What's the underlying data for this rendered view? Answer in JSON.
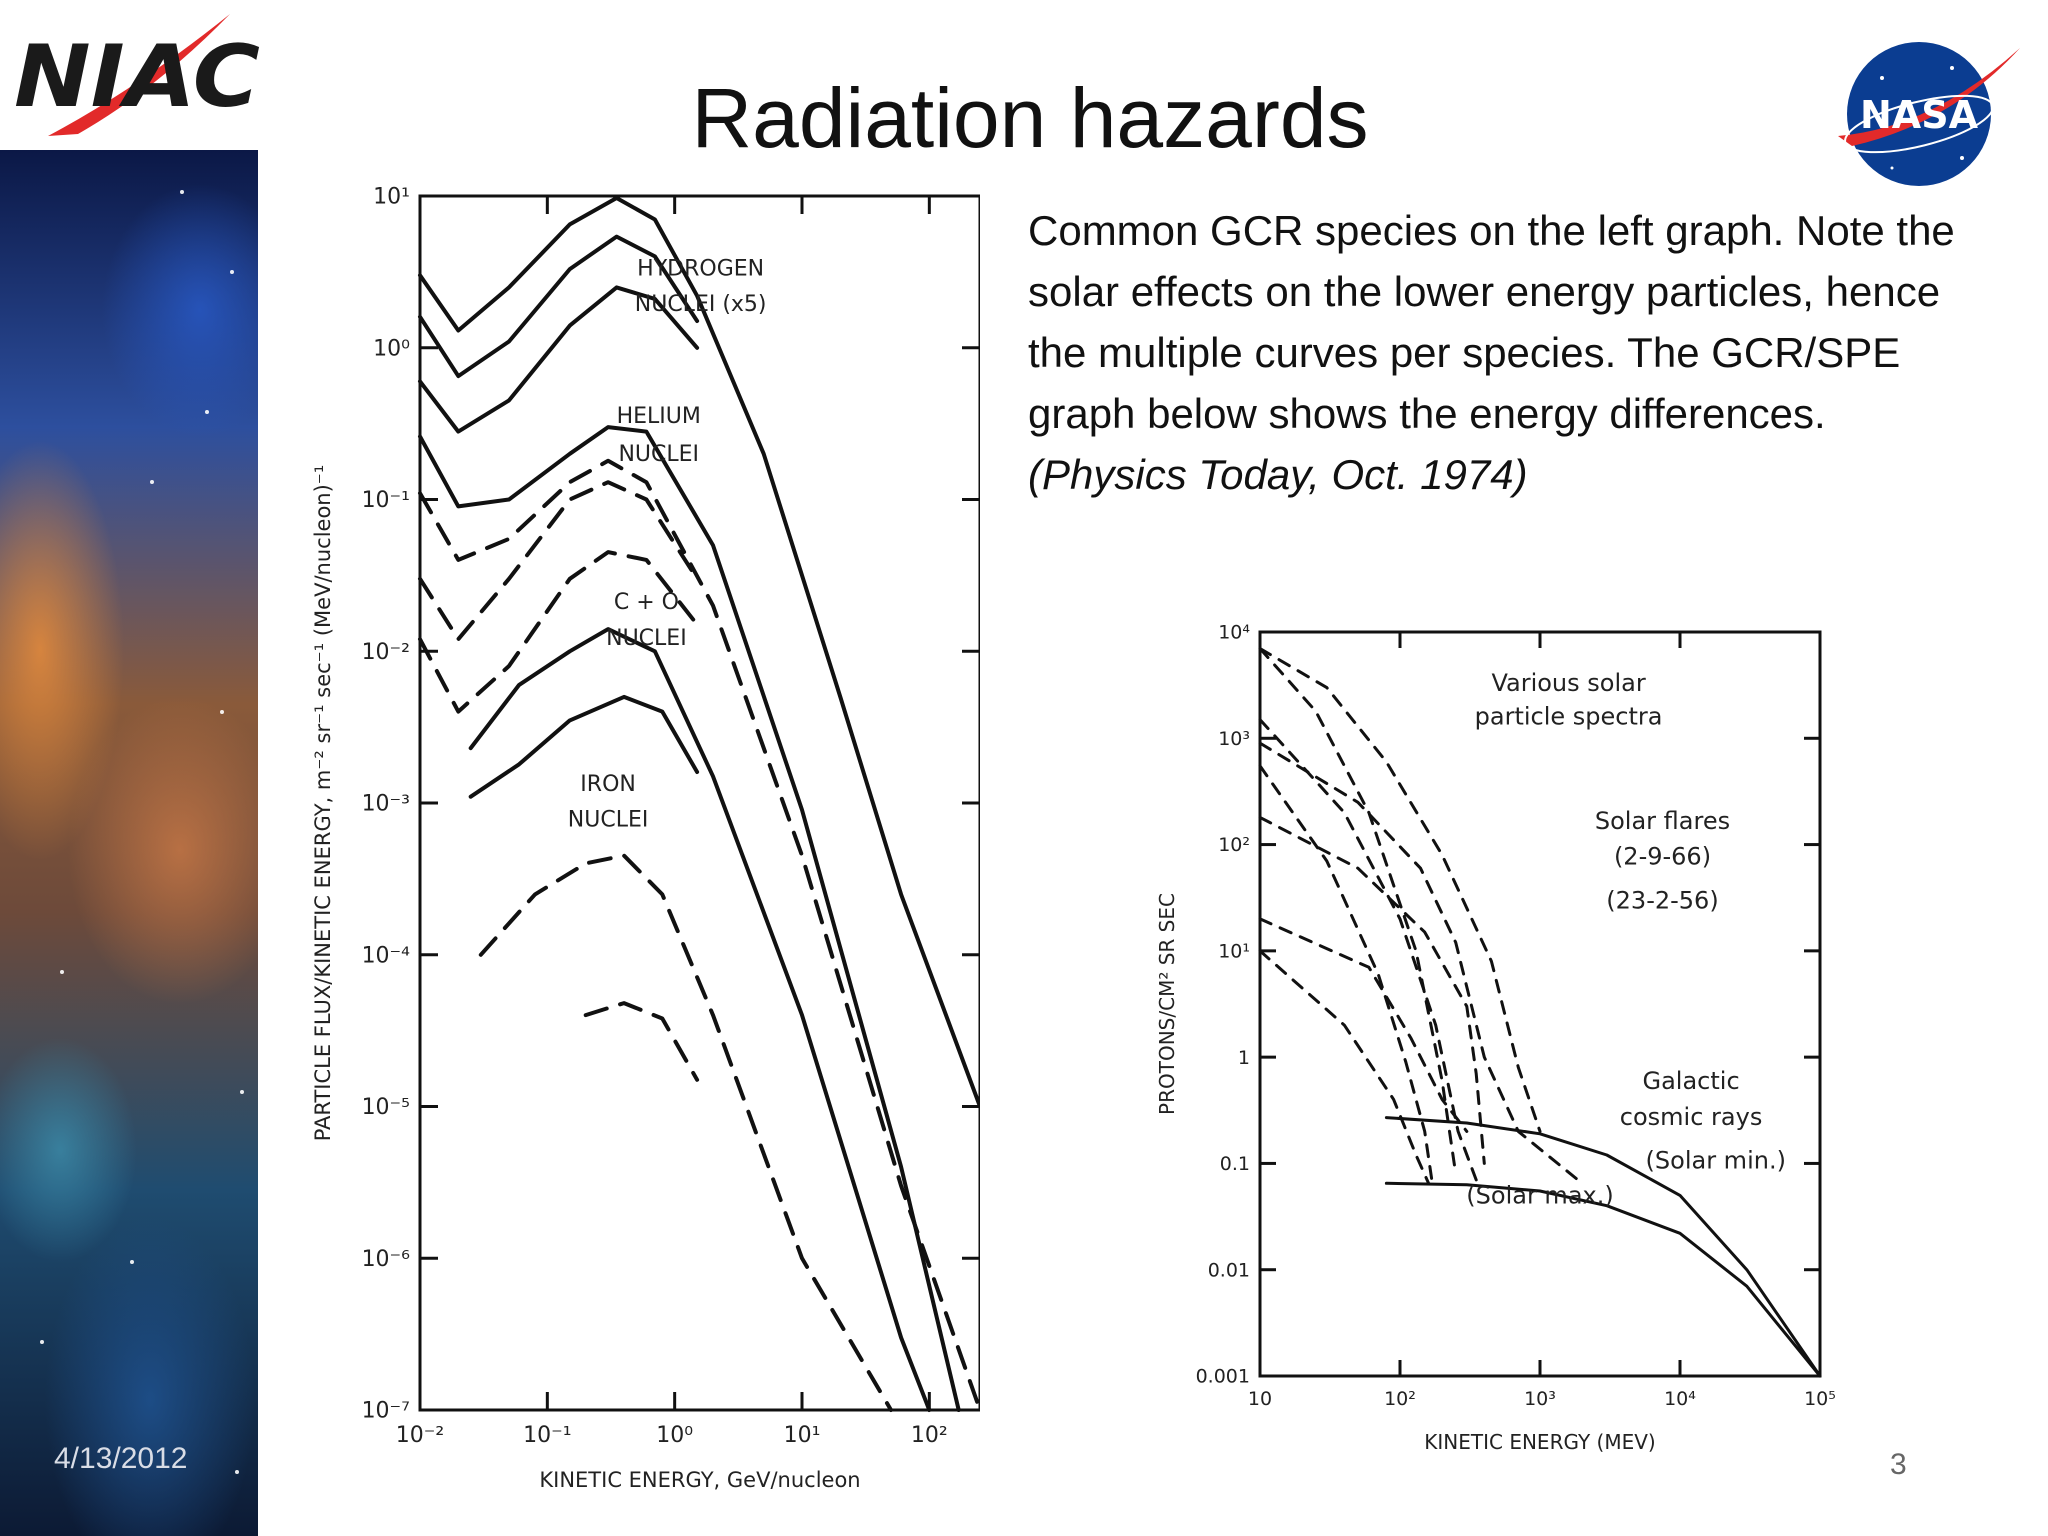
{
  "slide": {
    "title": "Radiation hazards",
    "description": "Common GCR species on the left graph. Note the solar effects on the lower energy particles, hence the multiple curves per species.  The GCR/SPE graph below shows the energy differences.",
    "citation": "(Physics Today, Oct. 1974)",
    "date": "4/13/2012",
    "page_number": "3",
    "logos": {
      "left": "NIAC",
      "right": "NASA"
    }
  },
  "chart_data": [
    {
      "type": "line",
      "xlabel": "KINETIC ENERGY, GeV/nucleon",
      "ylabel": "PARTICLE FLUX/KINETIC ENERGY,  m⁻² sr⁻¹ sec⁻¹ (MeV/nucleon)⁻¹",
      "x_scale": "log",
      "y_scale": "log",
      "xlim": [
        0.01,
        250
      ],
      "ylim": [
        1e-07,
        10
      ],
      "x_ticks": [
        0.01,
        0.1,
        1,
        10,
        100
      ],
      "x_tick_labels": [
        "10⁻²",
        "10⁻¹",
        "10⁰",
        "10¹",
        "10²"
      ],
      "y_ticks": [
        1e-07,
        1e-06,
        1e-05,
        0.0001,
        0.001,
        0.01,
        0.1,
        1,
        10
      ],
      "y_tick_labels": [
        "10⁻⁷",
        "10⁻⁶",
        "10⁻⁵",
        "10⁻⁴",
        "10⁻³",
        "10⁻²",
        "10⁻¹",
        "10⁰",
        "10¹"
      ],
      "annotations": [
        {
          "text": "HYDROGEN",
          "x": 1.6,
          "y": 3.0
        },
        {
          "text": "NUCLEI (x5)",
          "x": 1.6,
          "y": 1.75
        },
        {
          "text": "HELIUM",
          "x": 0.75,
          "y": 0.32
        },
        {
          "text": "NUCLEI",
          "x": 0.75,
          "y": 0.18
        },
        {
          "text": "C + O",
          "x": 0.6,
          "y": 0.019
        },
        {
          "text": "NUCLEI",
          "x": 0.6,
          "y": 0.011
        },
        {
          "text": "IRON",
          "x": 0.3,
          "y": 0.0012
        },
        {
          "text": "NUCLEI",
          "x": 0.3,
          "y": 0.0007
        }
      ],
      "series": [
        {
          "style": "solid",
          "points": [
            [
              0.01,
              3
            ],
            [
              0.02,
              1.3
            ],
            [
              0.05,
              2.5
            ],
            [
              0.15,
              6.5
            ],
            [
              0.35,
              9.7
            ],
            [
              0.7,
              7
            ],
            [
              1.5,
              2.2
            ],
            [
              5,
              0.2
            ],
            [
              20,
              0.005
            ],
            [
              60,
              0.00025
            ],
            [
              250,
              1e-05
            ]
          ]
        },
        {
          "style": "solid",
          "points": [
            [
              0.01,
              1.6
            ],
            [
              0.02,
              0.65
            ],
            [
              0.05,
              1.1
            ],
            [
              0.15,
              3.3
            ],
            [
              0.35,
              5.4
            ],
            [
              0.7,
              4
            ],
            [
              1.5,
              1.5
            ]
          ]
        },
        {
          "style": "solid",
          "points": [
            [
              0.01,
              0.6
            ],
            [
              0.02,
              0.28
            ],
            [
              0.05,
              0.45
            ],
            [
              0.15,
              1.4
            ],
            [
              0.35,
              2.5
            ],
            [
              0.7,
              2.1
            ],
            [
              1.5,
              1.0
            ]
          ]
        },
        {
          "style": "solid",
          "points": [
            [
              0.01,
              0.26
            ],
            [
              0.02,
              0.09
            ],
            [
              0.05,
              0.1
            ],
            [
              0.15,
              0.2
            ],
            [
              0.3,
              0.3
            ],
            [
              0.6,
              0.28
            ],
            [
              2,
              0.05
            ],
            [
              10,
              0.0009
            ],
            [
              60,
              4e-06
            ],
            [
              170,
              1e-07
            ]
          ]
        },
        {
          "style": "dashed",
          "points": [
            [
              0.01,
              0.11
            ],
            [
              0.02,
              0.04
            ],
            [
              0.05,
              0.055
            ],
            [
              0.15,
              0.13
            ],
            [
              0.3,
              0.18
            ],
            [
              0.6,
              0.13
            ],
            [
              2,
              0.02
            ],
            [
              10,
              0.00045
            ],
            [
              60,
              3e-06
            ],
            [
              250,
              1e-07
            ]
          ]
        },
        {
          "style": "dashed",
          "points": [
            [
              0.01,
              0.03
            ],
            [
              0.02,
              0.012
            ],
            [
              0.05,
              0.03
            ],
            [
              0.15,
              0.1
            ],
            [
              0.3,
              0.13
            ],
            [
              0.6,
              0.1
            ],
            [
              1.5,
              0.03
            ]
          ]
        },
        {
          "style": "dashed",
          "points": [
            [
              0.01,
              0.012
            ],
            [
              0.02,
              0.004
            ],
            [
              0.05,
              0.008
            ],
            [
              0.15,
              0.03
            ],
            [
              0.3,
              0.045
            ],
            [
              0.6,
              0.04
            ],
            [
              1.5,
              0.015
            ]
          ]
        },
        {
          "style": "solid",
          "points": [
            [
              0.025,
              0.0023
            ],
            [
              0.06,
              0.006
            ],
            [
              0.15,
              0.01
            ],
            [
              0.3,
              0.014
            ],
            [
              0.7,
              0.01
            ],
            [
              2,
              0.0015
            ],
            [
              10,
              4e-05
            ],
            [
              60,
              3e-07
            ],
            [
              100,
              1e-07
            ]
          ]
        },
        {
          "style": "solid",
          "points": [
            [
              0.025,
              0.0011
            ],
            [
              0.06,
              0.0018
            ],
            [
              0.15,
              0.0035
            ],
            [
              0.4,
              0.005
            ],
            [
              0.8,
              0.004
            ],
            [
              1.5,
              0.0016
            ]
          ]
        },
        {
          "style": "dashed",
          "points": [
            [
              0.03,
              0.0001
            ],
            [
              0.08,
              0.00025
            ],
            [
              0.2,
              0.0004
            ],
            [
              0.4,
              0.00045
            ],
            [
              0.8,
              0.00025
            ],
            [
              2,
              4e-05
            ],
            [
              10,
              1e-06
            ],
            [
              50,
              1e-07
            ]
          ]
        },
        {
          "style": "dashed",
          "points": [
            [
              0.2,
              4e-05
            ],
            [
              0.4,
              4.8e-05
            ],
            [
              0.8,
              3.8e-05
            ],
            [
              1.5,
              1.5e-05
            ]
          ]
        }
      ]
    },
    {
      "type": "line",
      "xlabel": "KINETIC ENERGY (MEV)",
      "ylabel": "PROTONS/CM² SR SEC",
      "x_scale": "log",
      "y_scale": "log",
      "xlim": [
        10,
        100000
      ],
      "ylim": [
        0.001,
        10000
      ],
      "x_ticks": [
        10,
        100,
        1000,
        10000,
        100000
      ],
      "x_tick_labels": [
        "10",
        "10²",
        "10³",
        "10⁴",
        "10⁵"
      ],
      "y_ticks": [
        0.001,
        0.01,
        0.1,
        1,
        10,
        100,
        1000,
        10000
      ],
      "y_tick_labels": [
        "0.001",
        "0.01",
        "0.1",
        "1",
        "10¹",
        "10²",
        "10³",
        "10⁴"
      ],
      "annotations": [
        {
          "text": "Various solar",
          "x": 1600,
          "y": 2800
        },
        {
          "text": "particle spectra",
          "x": 1600,
          "y": 1350
        },
        {
          "text": "Solar flares",
          "x": 7500,
          "y": 140
        },
        {
          "text": "(2-9-66)",
          "x": 7500,
          "y": 65
        },
        {
          "text": "(23-2-56)",
          "x": 7500,
          "y": 25
        },
        {
          "text": "Galactic",
          "x": 12000,
          "y": 0.5
        },
        {
          "text": "cosmic rays",
          "x": 12000,
          "y": 0.23
        },
        {
          "text": "(Solar min.)",
          "x": 18000,
          "y": 0.09
        },
        {
          "text": "(Solar max.)",
          "x": 1000,
          "y": 0.042
        }
      ],
      "series": [
        {
          "name": "Galactic cosmic rays (Solar min.)",
          "style": "solid",
          "points": [
            [
              80,
              0.27
            ],
            [
              300,
              0.24
            ],
            [
              1000,
              0.19
            ],
            [
              3000,
              0.12
            ],
            [
              10000,
              0.05
            ],
            [
              30000,
              0.01
            ],
            [
              100000,
              0.001
            ]
          ]
        },
        {
          "name": "Galactic cosmic rays (Solar max.)",
          "style": "solid",
          "points": [
            [
              80,
              0.065
            ],
            [
              300,
              0.063
            ],
            [
              1000,
              0.055
            ],
            [
              3000,
              0.04
            ],
            [
              10000,
              0.022
            ],
            [
              30000,
              0.007
            ],
            [
              100000,
              0.001
            ]
          ]
        },
        {
          "style": "dashed",
          "points": [
            [
              10,
              7000
            ],
            [
              30,
              3000
            ],
            [
              80,
              600
            ],
            [
              200,
              80
            ],
            [
              450,
              8
            ],
            [
              700,
              0.8
            ],
            [
              1000,
              0.2
            ]
          ]
        },
        {
          "style": "dashed",
          "points": [
            [
              10,
              7000
            ],
            [
              25,
              1800
            ],
            [
              60,
              200
            ],
            [
              130,
              10
            ],
            [
              200,
              0.6
            ],
            [
              250,
              0.08
            ]
          ]
        },
        {
          "style": "dashed",
          "points": [
            [
              10,
              1500
            ],
            [
              40,
              200
            ],
            [
              100,
              20
            ],
            [
              180,
              2
            ],
            [
              260,
              0.2
            ],
            [
              350,
              0.07
            ]
          ]
        },
        {
          "style": "dashed",
          "points": [
            [
              10,
              900
            ],
            [
              50,
              250
            ],
            [
              140,
              60
            ],
            [
              250,
              12
            ],
            [
              400,
              1
            ],
            [
              700,
              0.2
            ],
            [
              2000,
              0.065
            ]
          ]
        },
        {
          "style": "dashed",
          "points": [
            [
              10,
              550
            ],
            [
              30,
              70
            ],
            [
              70,
              6
            ],
            [
              110,
              0.9
            ],
            [
              150,
              0.2
            ],
            [
              170,
              0.065
            ]
          ]
        },
        {
          "style": "dashed",
          "points": [
            [
              10,
              180
            ],
            [
              50,
              60
            ],
            [
              150,
              15
            ],
            [
              300,
              3
            ],
            [
              350,
              0.7
            ],
            [
              400,
              0.1
            ]
          ]
        },
        {
          "style": "dashed",
          "points": [
            [
              10,
              20
            ],
            [
              60,
              7
            ],
            [
              120,
              1.5
            ],
            [
              200,
              0.4
            ],
            [
              300,
              0.2
            ]
          ]
        },
        {
          "style": "dashed",
          "points": [
            [
              10,
              10
            ],
            [
              40,
              2
            ],
            [
              90,
              0.4
            ],
            [
              130,
              0.12
            ],
            [
              160,
              0.065
            ]
          ]
        }
      ]
    }
  ]
}
